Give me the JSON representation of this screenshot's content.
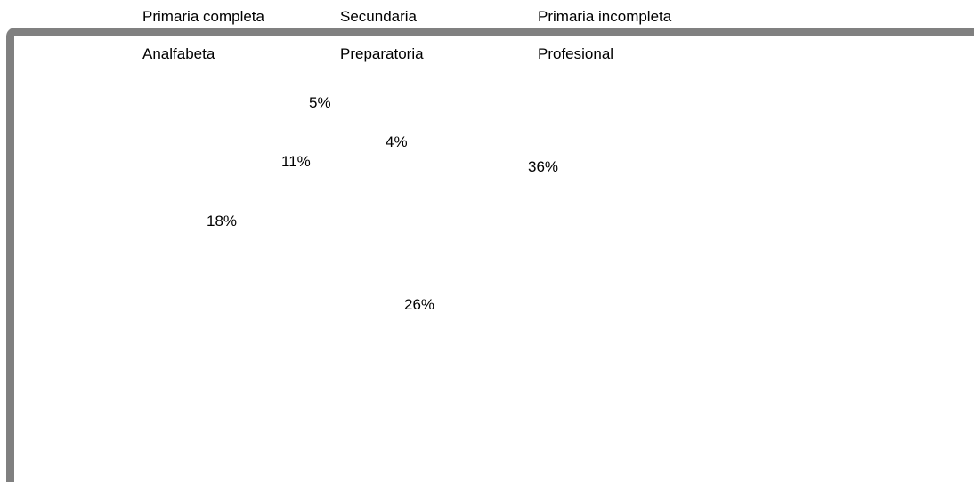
{
  "chart_data": {
    "type": "pie",
    "legend_placement": "top",
    "categories": [
      "Primaria completa",
      "Secundaria",
      "Primaria incompleta",
      "Analfabeta",
      "Preparatoria",
      "Profesional"
    ],
    "data_labels": [
      "36%",
      "26%",
      "18%",
      "11%",
      "5%",
      "4%"
    ],
    "values": [
      36,
      26,
      18,
      11,
      5,
      4
    ]
  }
}
